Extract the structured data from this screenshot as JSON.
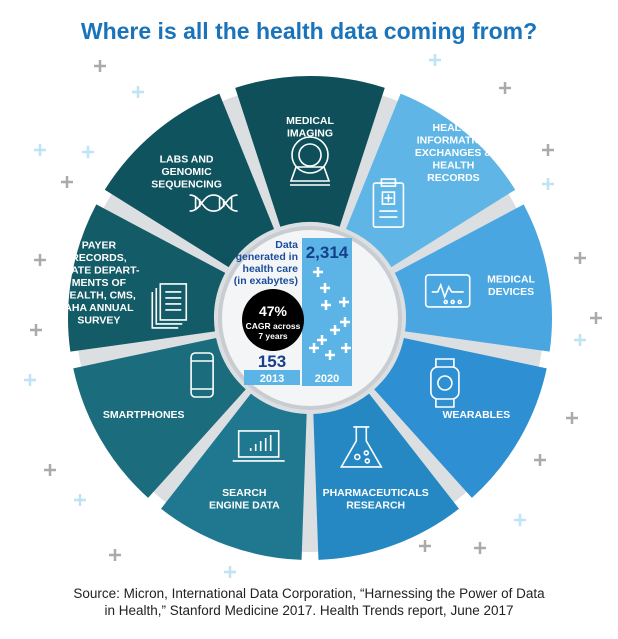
{
  "title": "Where is all the health data coming from?",
  "segments": [
    {
      "label": [
        "MEDICAL",
        "IMAGING"
      ],
      "icon": "mri-scanner-icon",
      "color": "#0e4f5a"
    },
    {
      "label": [
        "HEALTH",
        "INFORMATION",
        "EXCHANGES &",
        "HEALTH",
        "RECORDS"
      ],
      "icon": "clipboard-icon",
      "color": "#5fb6e6"
    },
    {
      "label": [
        "MEDICAL",
        "DEVICES"
      ],
      "icon": "monitor-icon",
      "color": "#49a6e0"
    },
    {
      "label": [
        "WEARABLES"
      ],
      "icon": "smartwatch-icon",
      "color": "#2e8fd2"
    },
    {
      "label": [
        "PHARMACEUTICALS",
        "RESEARCH"
      ],
      "icon": "flask-icon",
      "color": "#2588c2"
    },
    {
      "label": [
        "SEARCH",
        "ENGINE DATA"
      ],
      "icon": "laptop-chart-icon",
      "color": "#1f7890"
    },
    {
      "label": [
        "SMARTPHONES"
      ],
      "icon": "smartphone-icon",
      "color": "#1b6c7c"
    },
    {
      "label": [
        "PAYER",
        "RECORDS,",
        "STATE DEPART-",
        "MENTS OF",
        "HEALTH, CMS,",
        "AHA ANNUAL",
        "SURVEY"
      ],
      "icon": "documents-icon",
      "color": "#135b66"
    },
    {
      "label": [
        "LABS AND",
        "GENOMIC",
        "SEQUENCING"
      ],
      "icon": "dna-icon",
      "color": "#0f535e"
    }
  ],
  "center": {
    "caption": [
      "Data",
      "generated in",
      "health care",
      "(in exabytes)"
    ],
    "cagr_value": "47%",
    "cagr_text": [
      "CAGR across",
      "7 years"
    ],
    "value_2013": "153",
    "value_2020": "2,314",
    "year_2013": "2013",
    "year_2020": "2020"
  },
  "chart_data": {
    "type": "bar",
    "categories": [
      "2013",
      "2020"
    ],
    "values": [
      153,
      2314
    ],
    "title": "Data generated in health care (in exabytes)"
  },
  "source": [
    "Source: Micron, International Data Corporation, “Harnessing the Power of Data",
    "in Health,” Stanford Medicine 2017.  Health Trends report, June 2017"
  ]
}
